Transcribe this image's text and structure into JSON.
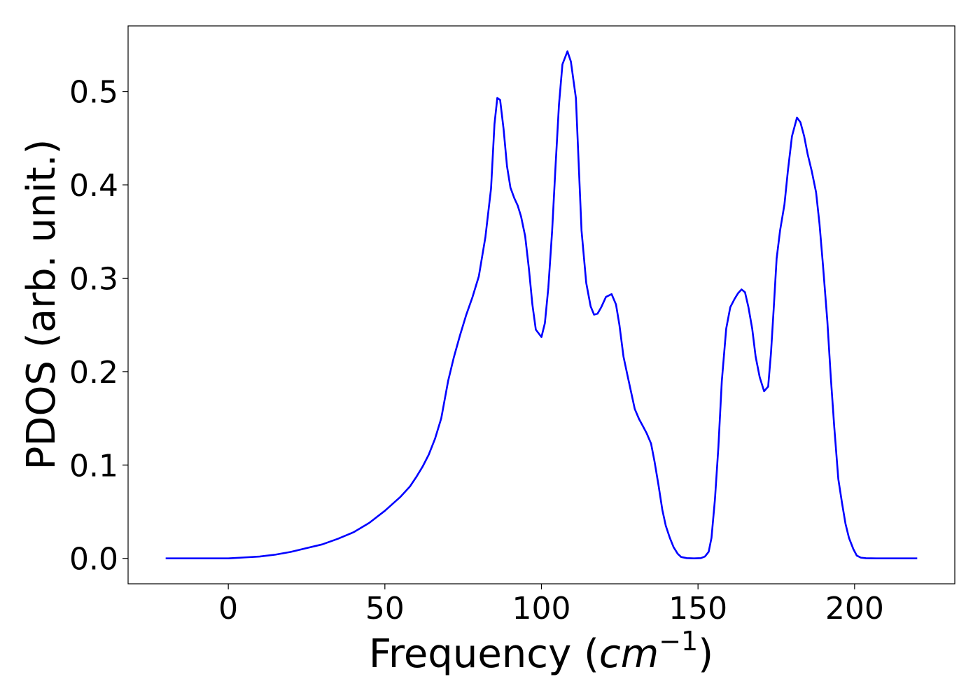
{
  "chart_data": {
    "type": "line",
    "x_label": [
      "Frequency (",
      "cm",
      "−1",
      ")"
    ],
    "y_label": "PDOS (arb. unit.)",
    "x": [
      -20,
      0,
      5,
      10,
      15,
      20,
      25,
      30,
      35,
      40,
      45,
      50,
      55,
      58,
      60,
      62,
      64,
      66,
      68,
      70.2,
      72,
      74,
      76,
      78,
      80,
      82.1,
      83.9,
      85,
      85.9,
      86.8,
      87.9,
      89,
      90.1,
      91.3,
      92.4,
      93.5,
      94.8,
      96,
      97.1,
      98.2,
      100,
      101.1,
      102.2,
      103.4,
      104.5,
      105.6,
      106.7,
      108.3,
      109.4,
      111,
      112.8,
      114.3,
      115.7,
      116.8,
      117.9,
      119.1,
      120.6,
      122.4,
      123.8,
      124.9,
      126.2,
      127.6,
      128.7,
      129.8,
      131.2,
      132.5,
      133.6,
      135,
      136.1,
      137.4,
      138.6,
      139.7,
      141,
      142.2,
      143.5,
      144.6,
      146.4,
      148.7,
      150.9,
      152.2,
      153.4,
      154.3,
      155.4,
      156.5,
      157.6,
      159,
      160.3,
      161.7,
      162.8,
      163.9,
      165,
      166.1,
      167.3,
      168.4,
      169.7,
      171.1,
      172.4,
      173.3,
      174.2,
      175.1,
      176.2,
      177.6,
      178.7,
      180,
      181.6,
      182.7,
      183.9,
      185,
      186.3,
      187.7,
      188.8,
      189.9,
      191.3,
      192.4,
      193.5,
      194.8,
      196,
      197.1,
      198.2,
      199.6,
      200.7,
      202,
      203.6,
      206.9,
      220
    ],
    "y": [
      0,
      0,
      0.001,
      0.002,
      0.004,
      0.007,
      0.011,
      0.015,
      0.021,
      0.028,
      0.038,
      0.051,
      0.066,
      0.077,
      0.087,
      0.098,
      0.111,
      0.128,
      0.15,
      0.19,
      0.215,
      0.239,
      0.261,
      0.28,
      0.302,
      0.344,
      0.396,
      0.465,
      0.493,
      0.491,
      0.46,
      0.42,
      0.397,
      0.386,
      0.378,
      0.366,
      0.345,
      0.31,
      0.272,
      0.245,
      0.237,
      0.252,
      0.29,
      0.35,
      0.42,
      0.486,
      0.529,
      0.543,
      0.532,
      0.493,
      0.351,
      0.295,
      0.27,
      0.261,
      0.262,
      0.269,
      0.28,
      0.283,
      0.272,
      0.25,
      0.216,
      0.194,
      0.177,
      0.16,
      0.149,
      0.141,
      0.134,
      0.123,
      0.104,
      0.078,
      0.052,
      0.035,
      0.022,
      0.012,
      0.005,
      0.0015,
      0.0003,
      0,
      0.0003,
      0.002,
      0.007,
      0.022,
      0.063,
      0.119,
      0.19,
      0.246,
      0.269,
      0.278,
      0.284,
      0.288,
      0.285,
      0.269,
      0.246,
      0.216,
      0.194,
      0.179,
      0.184,
      0.22,
      0.269,
      0.321,
      0.351,
      0.379,
      0.415,
      0.452,
      0.472,
      0.467,
      0.452,
      0.433,
      0.415,
      0.392,
      0.358,
      0.314,
      0.254,
      0.194,
      0.141,
      0.085,
      0.059,
      0.037,
      0.022,
      0.01,
      0.003,
      0.0008,
      0.0002,
      0,
      0
    ],
    "color": "#0000ff",
    "xlim": [
      -32,
      232
    ],
    "ylim": [
      -0.0272,
      0.5702
    ],
    "xticks": [
      0,
      50,
      100,
      150,
      200
    ],
    "yticks": [
      {
        "value": 0,
        "label": "0.0"
      },
      0.1,
      0.2,
      0.3,
      0.4,
      0.5
    ],
    "grid": false
  }
}
